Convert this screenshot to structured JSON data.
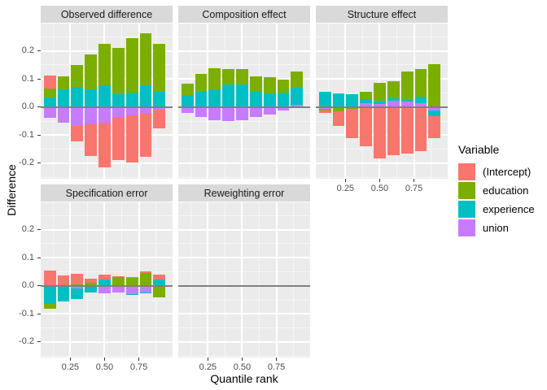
{
  "figure": {
    "y_axis_title": "Difference",
    "x_axis_title": "Quantile rank",
    "y_tick_labels": [
      "0.2",
      "0.1",
      "0.0",
      "-0.1",
      "-0.2"
    ],
    "y_tick_values": [
      0.2,
      0.1,
      0.0,
      -0.1,
      -0.2
    ],
    "x_tick_labels": [
      "0.25",
      "0.50",
      "0.75"
    ],
    "x_tick_values": [
      0.25,
      0.5,
      0.75
    ]
  },
  "legend": {
    "title": "Variable"
  },
  "theme": {
    "panel_bg": "#ebebeb",
    "strip_bg": "#d9d9d9",
    "grid_color": "#ffffff",
    "zero_line_color": "#7f7f7f",
    "tick_label_color": "#4d4d4d"
  },
  "chart_data": {
    "type": "bar",
    "stacked": true,
    "title": "",
    "xlabel": "Quantile rank",
    "ylabel": "Difference",
    "x": [
      0.1,
      0.2,
      0.3,
      0.4,
      0.5,
      0.6,
      0.7,
      0.8,
      0.9
    ],
    "xlim": [
      0.034,
      0.996
    ],
    "ylim": [
      -0.255,
      0.3
    ],
    "bar_width": 0.088,
    "grid": {
      "y_major": [
        -0.2,
        -0.1,
        0.0,
        0.1,
        0.2,
        0.3
      ],
      "y_minor": [
        -0.25,
        -0.15,
        -0.05,
        0.05,
        0.15,
        0.25
      ],
      "x_major": [
        0.25,
        0.5,
        0.75
      ],
      "x_minor": [
        0.125,
        0.375,
        0.625,
        0.875
      ]
    },
    "variables": [
      {
        "name": "(Intercept)",
        "color": "#F8766D"
      },
      {
        "name": "education",
        "color": "#7CAE00"
      },
      {
        "name": "experience",
        "color": "#00BFC4"
      },
      {
        "name": "union",
        "color": "#C77CFF"
      }
    ],
    "stack_order_from_baseline": [
      "union",
      "experience",
      "education",
      "(Intercept)"
    ],
    "facets": [
      {
        "title": "Observed difference",
        "row": 0,
        "col": 0,
        "values": {
          "(Intercept)": [
            0.045,
            0.0,
            -0.055,
            -0.114,
            -0.158,
            -0.153,
            -0.168,
            -0.155,
            -0.068
          ],
          "education": [
            0.033,
            0.048,
            0.077,
            0.125,
            0.148,
            0.164,
            0.194,
            0.185,
            0.17
          ],
          "experience": [
            0.034,
            0.062,
            0.073,
            0.062,
            0.076,
            0.046,
            0.051,
            0.078,
            0.054
          ],
          "union": [
            -0.038,
            -0.056,
            -0.068,
            -0.06,
            -0.056,
            -0.035,
            -0.03,
            -0.022,
            -0.009
          ]
        }
      },
      {
        "title": "Composition effect",
        "row": 0,
        "col": 1,
        "values": {
          "(Intercept)": [
            0,
            0,
            0,
            0,
            0,
            0,
            0,
            0,
            0
          ],
          "education": [
            0.04,
            0.066,
            0.074,
            0.055,
            0.054,
            0.055,
            0.058,
            0.048,
            0.057
          ],
          "experience": [
            0.042,
            0.053,
            0.064,
            0.079,
            0.08,
            0.055,
            0.048,
            0.051,
            0.062
          ],
          "union": [
            -0.02,
            -0.036,
            -0.047,
            -0.051,
            -0.047,
            -0.035,
            -0.027,
            -0.012,
            0.007
          ]
        }
      },
      {
        "title": "Structure effect",
        "row": 0,
        "col": 2,
        "values": {
          "(Intercept)": [
            -0.01,
            -0.05,
            -0.103,
            -0.14,
            -0.183,
            -0.171,
            -0.164,
            -0.158,
            -0.078
          ],
          "education": [
            -0.006,
            -0.014,
            -0.005,
            0.025,
            0.063,
            0.061,
            0.102,
            0.098,
            0.153
          ],
          "experience": [
            0.055,
            0.048,
            0.046,
            0.014,
            0.01,
            0.008,
            0.005,
            0.025,
            -0.021
          ],
          "union": [
            -0.005,
            -0.002,
            -0.002,
            0.014,
            0.012,
            0.022,
            0.02,
            0.013,
            -0.011
          ]
        }
      },
      {
        "title": "Specification error",
        "row": 1,
        "col": 0,
        "values": {
          "(Intercept)": [
            0.055,
            0.038,
            0.037,
            0.013,
            0.017,
            0.003,
            0.003,
            0.007,
            0.018
          ],
          "education": [
            -0.018,
            0.0,
            0.005,
            0.012,
            0.0,
            0.03,
            0.028,
            0.045,
            -0.04
          ],
          "experience": [
            -0.065,
            -0.052,
            -0.038,
            -0.021,
            0.022,
            0.0,
            -0.002,
            -0.004,
            0.023
          ],
          "union": [
            0.0,
            -0.003,
            -0.01,
            -0.004,
            -0.028,
            -0.024,
            -0.029,
            -0.023,
            -0.002
          ]
        }
      },
      {
        "title": "Reweighting error",
        "row": 1,
        "col": 1,
        "values": {
          "(Intercept)": [
            0,
            0,
            0,
            0,
            0,
            0,
            0,
            0,
            0
          ],
          "education": [
            0,
            0,
            0,
            0,
            0,
            0,
            0,
            0,
            0
          ],
          "experience": [
            0,
            0,
            0,
            0,
            0,
            0,
            0,
            0,
            0
          ],
          "union": [
            0,
            0,
            0,
            0,
            0,
            0,
            0,
            0,
            0
          ]
        }
      }
    ]
  }
}
